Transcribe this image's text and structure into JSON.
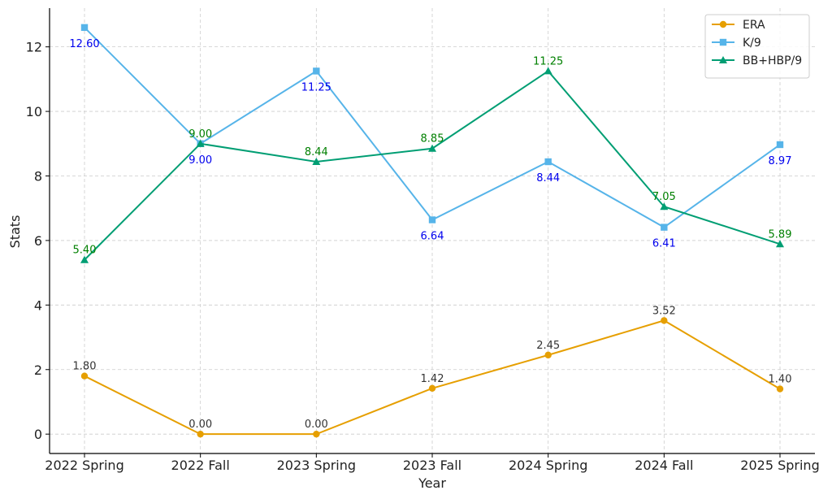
{
  "chart_data": {
    "type": "line",
    "xlabel": "Year",
    "ylabel": "Stats",
    "categories": [
      "2022 Spring",
      "2022 Fall",
      "2023 Spring",
      "2023 Fall",
      "2024 Spring",
      "2024 Fall",
      "2025 Spring"
    ],
    "ylim": [
      -0.6,
      13.2
    ],
    "yticks": [
      0,
      2,
      4,
      6,
      8,
      10,
      12
    ],
    "grid": true,
    "legend_position": "top-right",
    "series": [
      {
        "name": "ERA",
        "values": [
          1.8,
          0.0,
          0.0,
          1.42,
          2.45,
          3.52,
          1.4
        ],
        "labels": [
          "1.80",
          "0.00",
          "0.00",
          "1.42",
          "2.45",
          "3.52",
          "1.40"
        ],
        "color": "#E69F00",
        "label_color": "#333333",
        "marker": "circle",
        "label_position": "above"
      },
      {
        "name": "K/9",
        "values": [
          12.6,
          9.0,
          11.25,
          6.64,
          8.44,
          6.41,
          8.97
        ],
        "labels": [
          "12.60",
          "9.00",
          "11.25",
          "6.64",
          "8.44",
          "6.41",
          "8.97"
        ],
        "color": "#56B4E9",
        "label_color": "#0000EE",
        "marker": "square",
        "label_position": "below"
      },
      {
        "name": "BB+HBP/9",
        "values": [
          5.4,
          9.0,
          8.44,
          8.85,
          11.25,
          7.05,
          5.89
        ],
        "labels": [
          "5.40",
          "9.00",
          "8.44",
          "8.85",
          "11.25",
          "7.05",
          "5.89"
        ],
        "color": "#009E73",
        "label_color": "#008000",
        "marker": "triangle",
        "label_position": "above"
      }
    ]
  }
}
